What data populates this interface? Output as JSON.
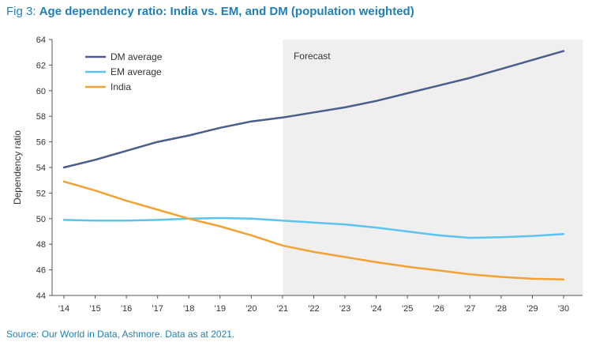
{
  "header": {
    "prefix": "Fig 3:",
    "title": "Age dependency ratio: India vs. EM, and DM (population weighted)"
  },
  "footer": {
    "source": "Source: Our World in Data, Ashmore. Data as at 2021."
  },
  "chart_data": {
    "type": "line",
    "title": "Age dependency ratio: India vs. EM, and DM (population weighted)",
    "xlabel": "",
    "ylabel": "Dependency ratio",
    "ylim": [
      44,
      64
    ],
    "y_ticks": [
      44,
      46,
      48,
      50,
      52,
      54,
      56,
      58,
      60,
      62,
      64
    ],
    "x": [
      "'14",
      "'15",
      "'16",
      "'17",
      "'18",
      "'19",
      "'20",
      "'21",
      "'22",
      "'23",
      "'24",
      "'25",
      "'26",
      "'27",
      "'28",
      "'29",
      "'30"
    ],
    "grid": false,
    "legend_position": "top-left",
    "forecast": {
      "label": "Forecast",
      "start": "'21",
      "color": "#efefef"
    },
    "series": [
      {
        "name": "DM average",
        "color": "#4a5d8c",
        "values": [
          54.0,
          54.6,
          55.3,
          56.0,
          56.5,
          57.1,
          57.6,
          57.9,
          58.3,
          58.7,
          59.2,
          59.8,
          60.4,
          61.0,
          61.7,
          62.4,
          63.1
        ]
      },
      {
        "name": "EM average",
        "color": "#5bc4ec",
        "values": [
          49.9,
          49.85,
          49.85,
          49.9,
          50.0,
          50.05,
          50.0,
          49.85,
          49.7,
          49.55,
          49.3,
          49.0,
          48.7,
          48.5,
          48.55,
          48.65,
          48.8
        ]
      },
      {
        "name": "India",
        "color": "#f4a233",
        "values": [
          52.9,
          52.2,
          51.4,
          50.7,
          50.0,
          49.4,
          48.7,
          47.9,
          47.4,
          47.0,
          46.6,
          46.25,
          45.95,
          45.65,
          45.45,
          45.3,
          45.25
        ]
      }
    ]
  }
}
